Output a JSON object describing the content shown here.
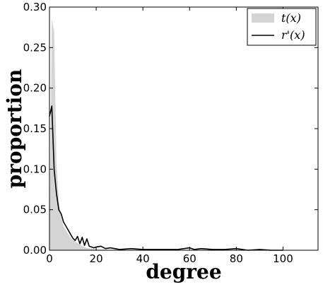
{
  "chart_data": {
    "type": "area",
    "xlabel": "degree",
    "ylabel": "proportion",
    "xlim": [
      0,
      115
    ],
    "ylim": [
      0,
      0.3
    ],
    "xticks": [
      0,
      20,
      40,
      60,
      80,
      100
    ],
    "yticks": [
      0.0,
      0.05,
      0.1,
      0.15,
      0.2,
      0.25,
      0.3
    ],
    "xtick_labels": [
      "0",
      "20",
      "40",
      "60",
      "80",
      "100"
    ],
    "ytick_labels": [
      "0.00",
      "0.05",
      "0.10",
      "0.15",
      "0.20",
      "0.25",
      "0.30"
    ],
    "legend": {
      "position": "top-right"
    },
    "series": [
      {
        "name": "t(x)",
        "style": "filled",
        "color": "#d4d4d4",
        "x": [
          0,
          1,
          2,
          3,
          4,
          5,
          6,
          7,
          8,
          9,
          10,
          11,
          12,
          13,
          14,
          15,
          16,
          18,
          20,
          25,
          30
        ],
        "y": [
          0.0,
          0.285,
          0.27,
          0.11,
          0.06,
          0.04,
          0.03,
          0.025,
          0.02,
          0.016,
          0.013,
          0.011,
          0.009,
          0.007,
          0.005,
          0.004,
          0.003,
          0.002,
          0.001,
          0.0005,
          0.0
        ]
      },
      {
        "name": "r'(x)",
        "style": "line",
        "color": "#000000",
        "x": [
          0,
          1,
          2,
          3,
          4,
          5,
          6,
          7,
          8,
          9,
          10,
          11,
          12,
          13,
          14,
          15,
          16,
          17,
          18,
          19,
          20,
          22,
          24,
          26,
          28,
          30,
          35,
          40,
          45,
          50,
          55,
          60,
          62,
          65,
          70,
          75,
          80,
          85,
          90,
          95,
          100
        ],
        "y": [
          0.165,
          0.178,
          0.1,
          0.07,
          0.05,
          0.045,
          0.035,
          0.03,
          0.025,
          0.02,
          0.015,
          0.012,
          0.017,
          0.008,
          0.016,
          0.006,
          0.014,
          0.005,
          0.004,
          0.003,
          0.004,
          0.005,
          0.002,
          0.003,
          0.002,
          0.001,
          0.002,
          0.001,
          0.001,
          0.001,
          0.001,
          0.003,
          0.001,
          0.002,
          0.001,
          0.001,
          0.002,
          0.0,
          0.001,
          0.0,
          0.0
        ]
      }
    ]
  }
}
